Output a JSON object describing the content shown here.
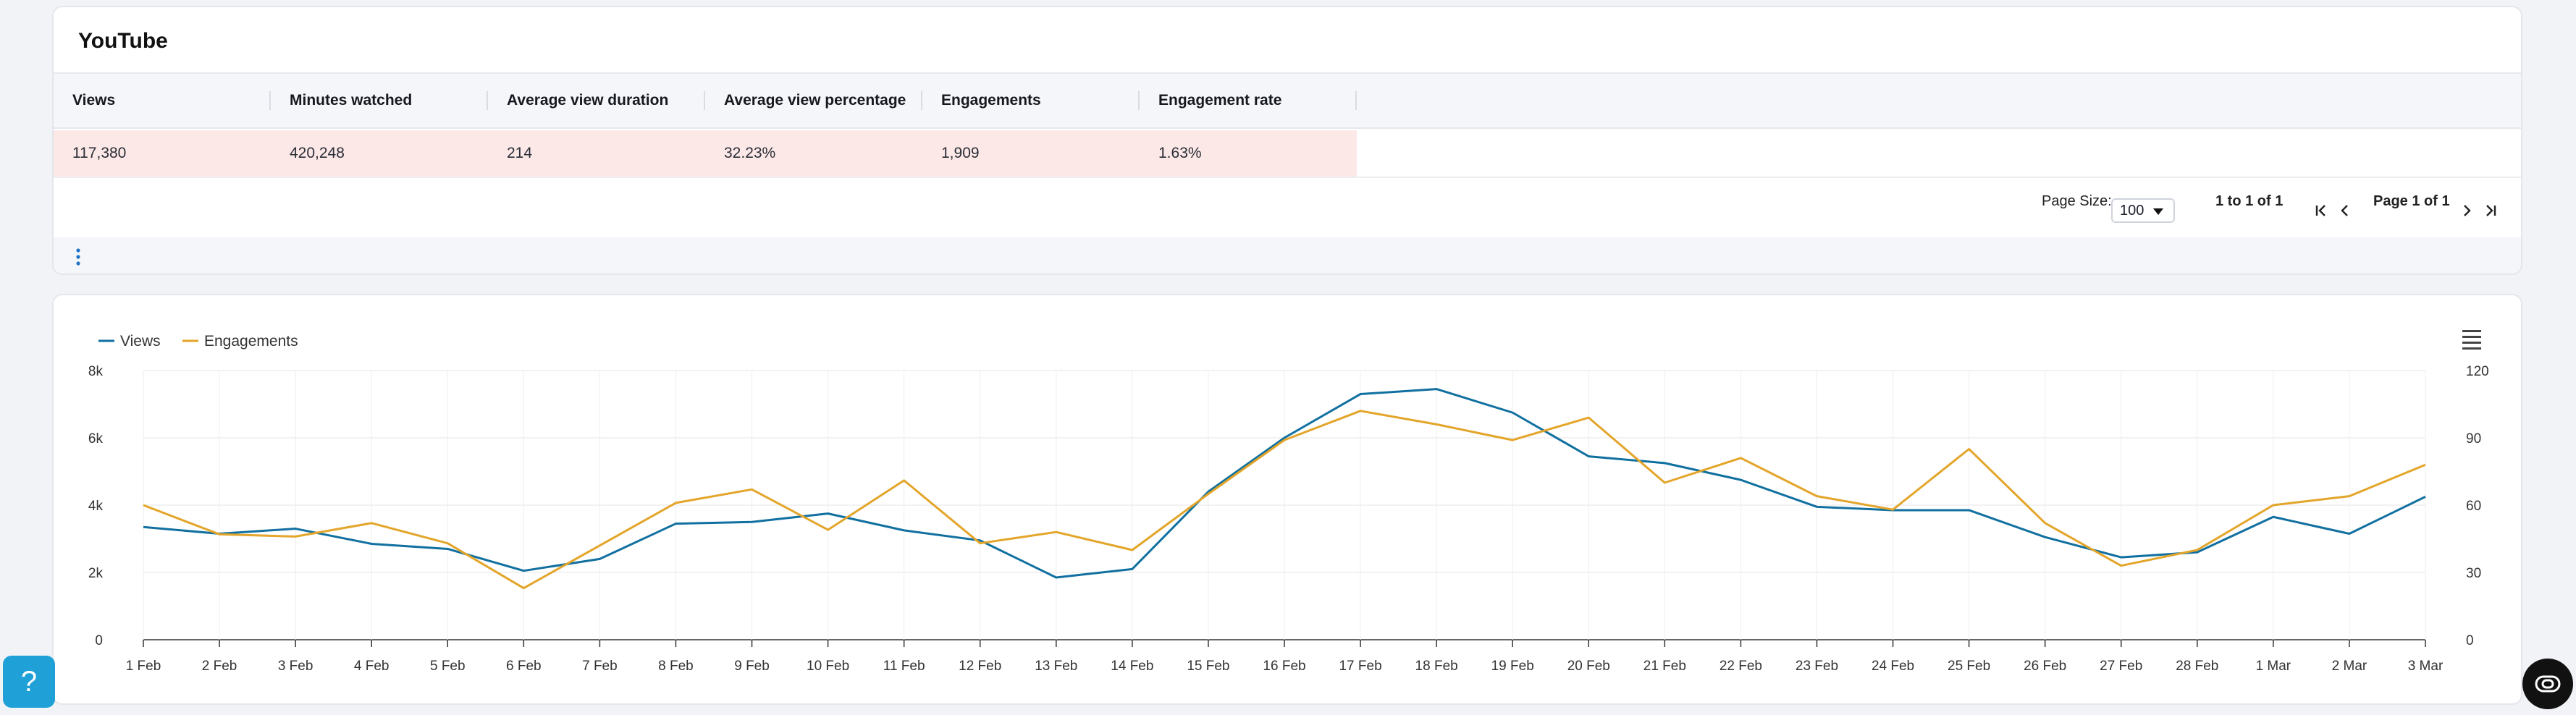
{
  "card": {
    "title": "YouTube"
  },
  "table": {
    "columns": [
      "Views",
      "Minutes watched",
      "Average view duration",
      "Average view percentage",
      "Engagements",
      "Engagement rate"
    ],
    "row": [
      "117,380",
      "420,248",
      "214",
      "32.23%",
      "1,909",
      "1.63%"
    ]
  },
  "pagination": {
    "page_size_label": "Page Size:",
    "page_size_value": "100",
    "range_text": "1 to 1 of 1",
    "page_text": "Page 1 of 1"
  },
  "chart_data": {
    "type": "line",
    "title": "",
    "categories": [
      "1 Feb",
      "2 Feb",
      "3 Feb",
      "4 Feb",
      "5 Feb",
      "6 Feb",
      "7 Feb",
      "8 Feb",
      "9 Feb",
      "10 Feb",
      "11 Feb",
      "12 Feb",
      "13 Feb",
      "14 Feb",
      "15 Feb",
      "16 Feb",
      "17 Feb",
      "18 Feb",
      "19 Feb",
      "20 Feb",
      "21 Feb",
      "22 Feb",
      "23 Feb",
      "24 Feb",
      "25 Feb",
      "26 Feb",
      "27 Feb",
      "28 Feb",
      "1 Mar",
      "2 Mar",
      "3 Mar"
    ],
    "series": [
      {
        "name": "Views",
        "axis": "left",
        "color": "#1170a0",
        "values": [
          3350,
          3150,
          3300,
          2850,
          2700,
          2050,
          2400,
          3450,
          3500,
          3750,
          3250,
          2950,
          1850,
          2100,
          4400,
          6000,
          7300,
          7450,
          6750,
          5450,
          5250,
          4750,
          3950,
          3850,
          3850,
          3050,
          2450,
          2600,
          3650,
          3150,
          4250
        ]
      },
      {
        "name": "Engagements",
        "axis": "right",
        "color": "#e3a52a",
        "values": [
          60,
          47,
          46,
          52,
          43,
          23,
          42,
          61,
          67,
          49,
          71,
          43,
          48,
          40,
          65,
          89,
          102,
          96,
          89,
          99,
          70,
          81,
          64,
          58,
          85,
          52,
          33,
          40,
          60,
          64,
          78
        ]
      }
    ],
    "y_left": {
      "min": 0,
      "max": 8000,
      "ticks": [
        "0",
        "2k",
        "4k",
        "6k",
        "8k"
      ]
    },
    "y_right": {
      "min": 0,
      "max": 120,
      "ticks": [
        "0",
        "30",
        "60",
        "90",
        "120"
      ]
    },
    "legend_position": "top-left",
    "grid": true
  }
}
